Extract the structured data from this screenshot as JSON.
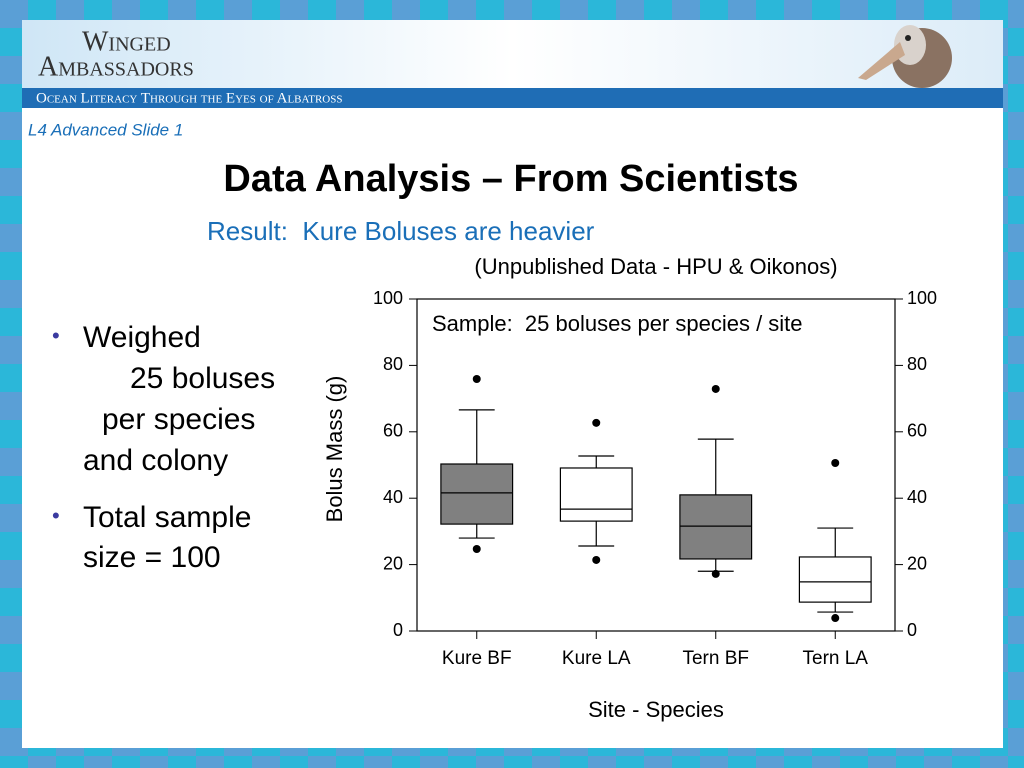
{
  "header": {
    "brand_line1": "Winged",
    "brand_line2": "Ambassadors",
    "tagline": "Ocean Literacy Through the Eyes of Albatross"
  },
  "slide_label": "L4 Advanced Slide 1",
  "title": "Data Analysis – From Scientists",
  "subtitle": "Result:  Kure Boluses are heavier",
  "bullets": [
    {
      "lines": [
        "Weighed",
        "25 boluses",
        "per species",
        "and colony"
      ]
    },
    {
      "lines": [
        "Total sample",
        "size = 100"
      ]
    }
  ],
  "chart_data": {
    "type": "box",
    "title": "(Unpublished Data - HPU & Oikonos)",
    "annotation": "Sample:  25 boluses per species / site",
    "xlabel": "Site - Species",
    "ylabel": "Bolus Mass (g)",
    "categories": [
      "Kure BF",
      "Kure LA",
      "Tern BF",
      "Tern LA"
    ],
    "boxes": [
      {
        "whisker_low": 28,
        "q1": 32.2,
        "median": 41.6,
        "q3": 50.3,
        "whisker_high": 66.6,
        "outliers": [
          75.9,
          24.7
        ],
        "color": "#808080"
      },
      {
        "whisker_low": 25.6,
        "q1": 33.1,
        "median": 36.7,
        "q3": 49.1,
        "whisker_high": 52.7,
        "outliers": [
          62.7,
          21.4
        ],
        "color": "#ffffff"
      },
      {
        "whisker_low": 18,
        "q1": 21.7,
        "median": 31.6,
        "q3": 41,
        "whisker_high": 57.8,
        "outliers": [
          72.9,
          17.2
        ],
        "color": "#808080"
      },
      {
        "whisker_low": 5.7,
        "q1": 8.7,
        "median": 14.8,
        "q3": 22.3,
        "whisker_high": 31,
        "outliers": [
          50.6,
          3.9
        ],
        "color": "#ffffff"
      }
    ],
    "ylim": [
      0,
      100
    ],
    "yticks": [
      0,
      20,
      40,
      60,
      80,
      100
    ],
    "y2lim": [
      0,
      100
    ],
    "y2ticks": [
      0,
      20,
      40,
      60,
      80,
      100
    ]
  }
}
